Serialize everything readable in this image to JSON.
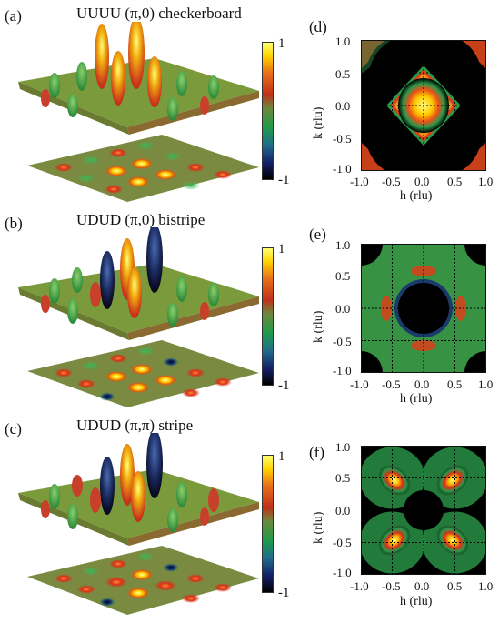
{
  "figure": {
    "panels_left": [
      {
        "letter": "(a)",
        "title": "UUUU (π,0) checkerboard",
        "cbar_max": "1",
        "cbar_min": "-1"
      },
      {
        "letter": "(b)",
        "title": "UDUD (π,0) bistripe",
        "cbar_max": "1",
        "cbar_min": "-1"
      },
      {
        "letter": "(c)",
        "title": "UDUD (π,π) stripe",
        "cbar_max": "1",
        "cbar_min": "-1"
      }
    ],
    "panels_right": [
      {
        "letter": "(d)",
        "pattern": "diamond"
      },
      {
        "letter": "(e)",
        "pattern": "ring"
      },
      {
        "letter": "(f)",
        "pattern": "four-peaks"
      }
    ],
    "xlabel": "h (rlu)",
    "ylabel": "k (rlu)",
    "x_ticks": [
      "-1.0",
      "-0.5",
      "0.0",
      "0.5",
      "1.0"
    ],
    "y_ticks": [
      "1.0",
      "0.5",
      "0.0",
      "-0.5",
      "-1.0"
    ],
    "colormap": [
      "#000000",
      "#1a2a6e",
      "#1f8a4a",
      "#5aa63a",
      "#c83a1e",
      "#e8601a",
      "#ffd200",
      "#ffff60"
    ]
  }
}
